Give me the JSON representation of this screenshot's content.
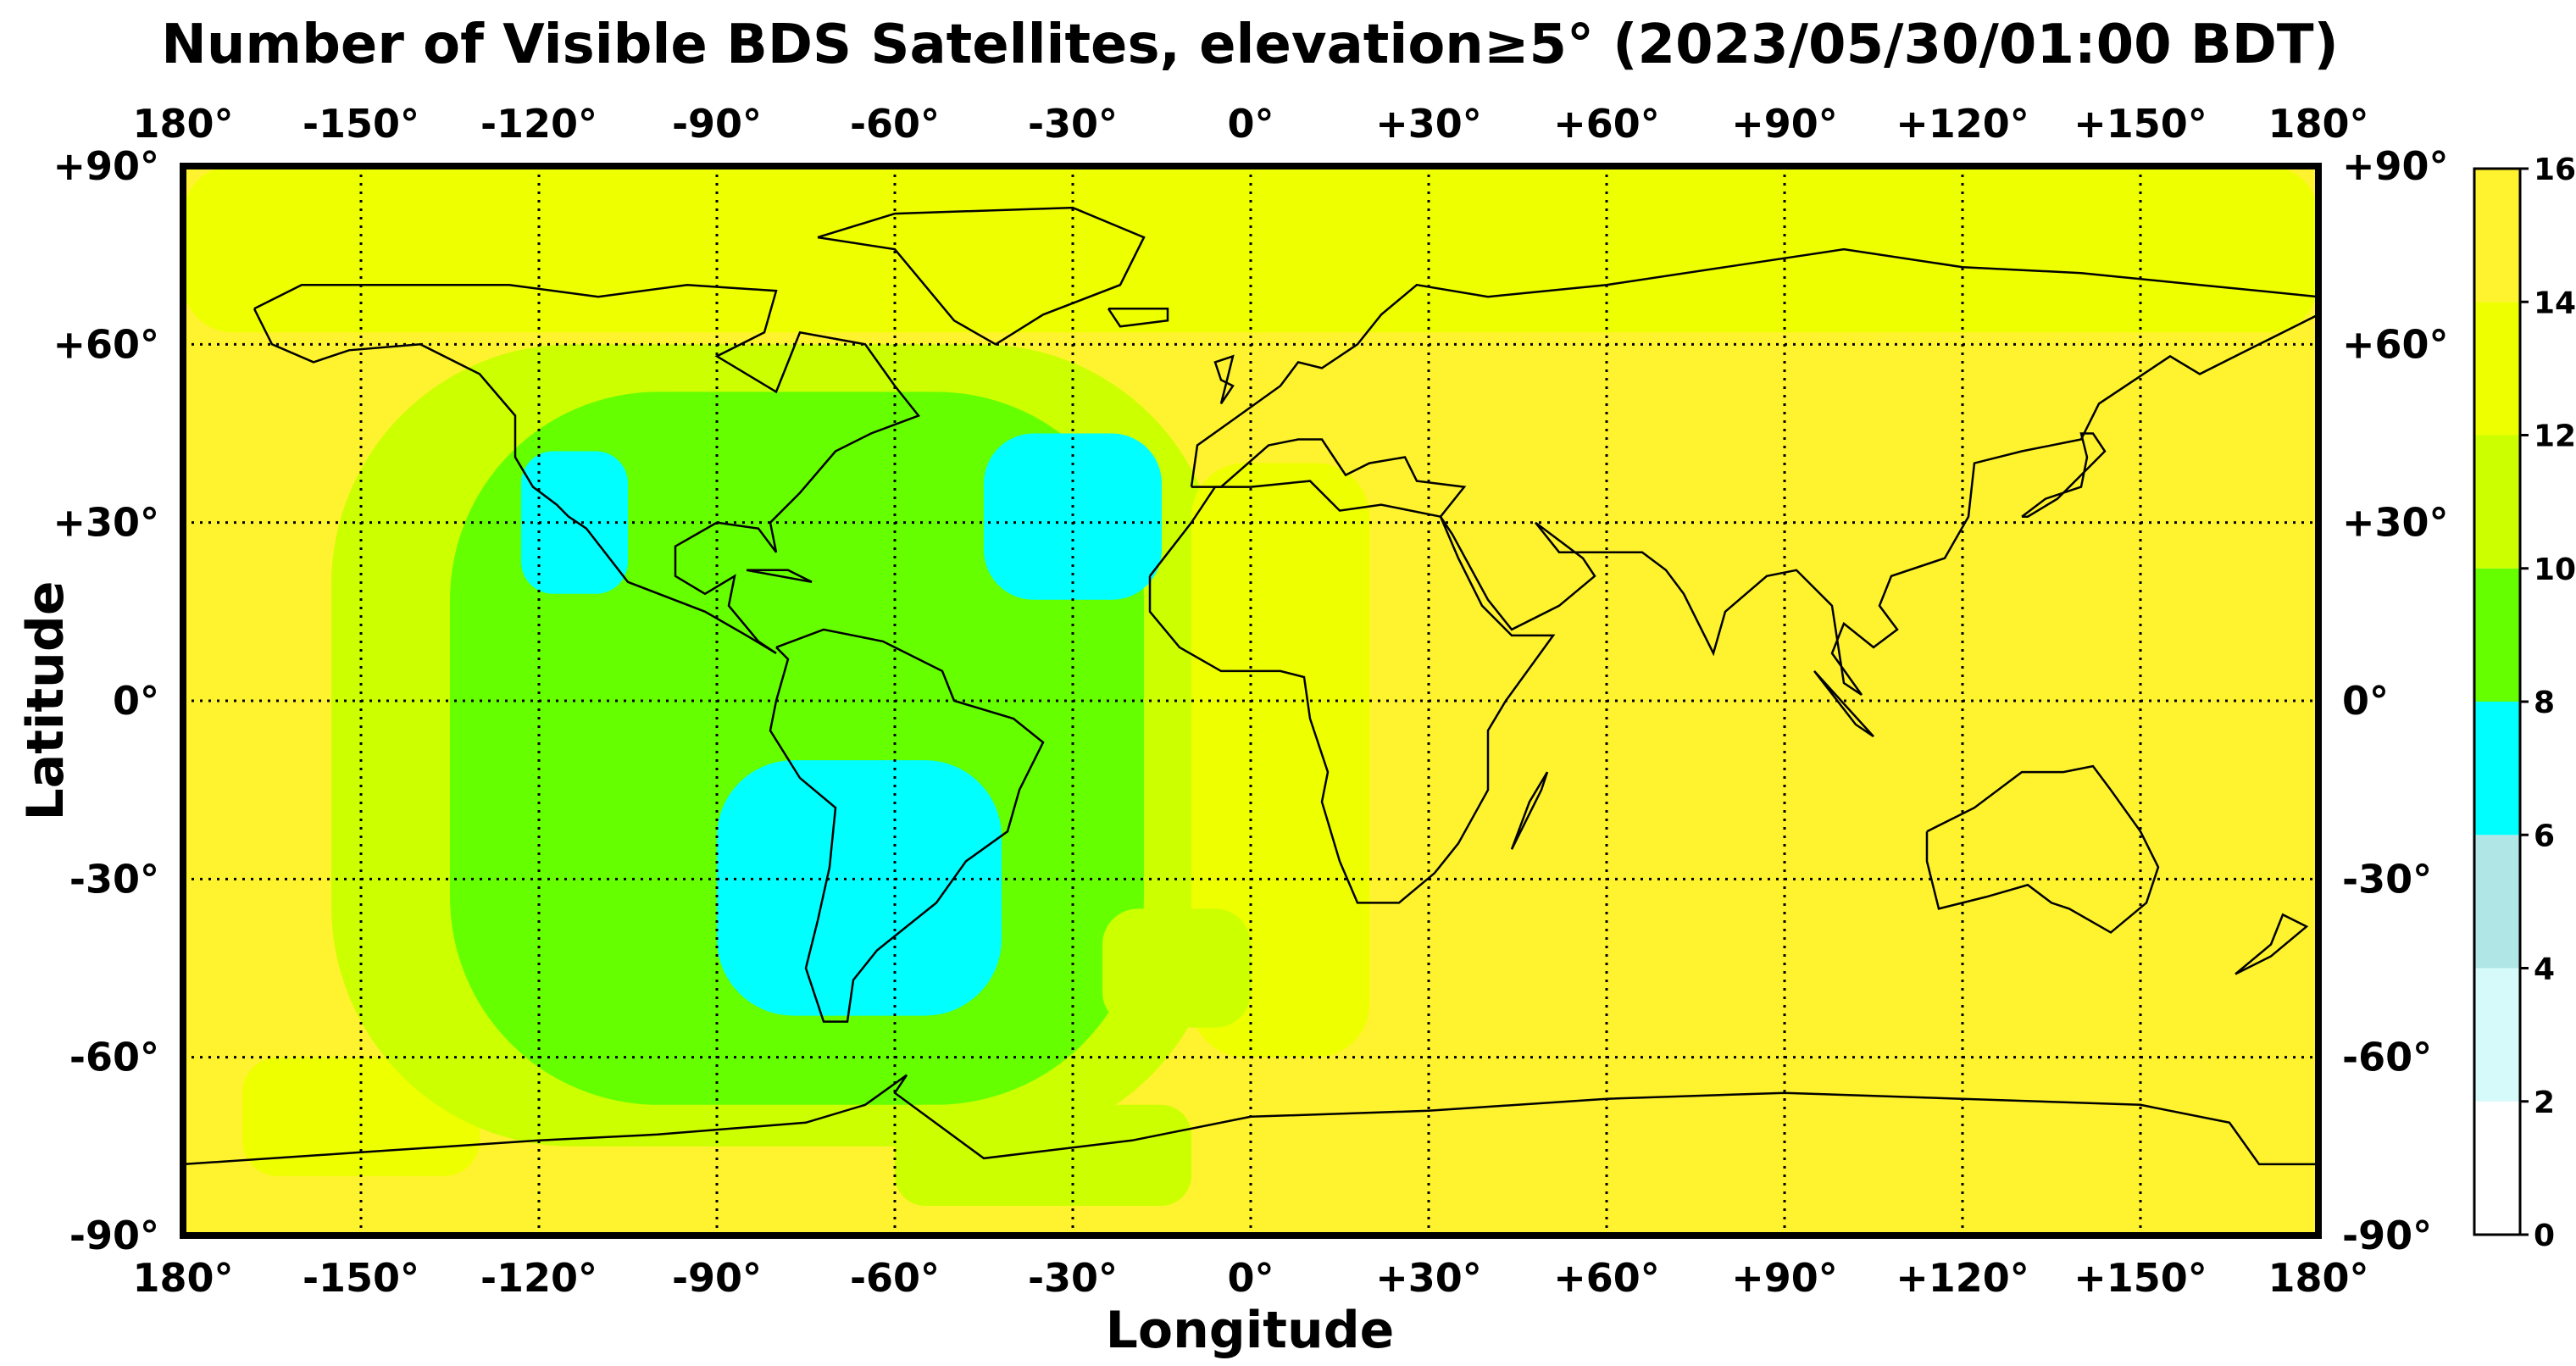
{
  "title": "Number of Visible BDS Satellites, elevation≥5° (2023/05/30/01:00 BDT)",
  "xlabel": "Longitude",
  "ylabel": "Latitude",
  "lon_ticks": [
    "180°",
    "-150°",
    "-120°",
    "-90°",
    "-60°",
    "-30°",
    "0°",
    "+30°",
    "+60°",
    "+90°",
    "+120°",
    "+150°",
    "180°"
  ],
  "lat_ticks": [
    "+90°",
    "+60°",
    "+30°",
    "0°",
    "-30°",
    "-60°",
    "-90°"
  ],
  "colorbar": {
    "ticks": [
      "0",
      "2",
      "4",
      "6",
      "8",
      "10",
      "12",
      "14",
      "16"
    ],
    "bins": [
      {
        "min": 0,
        "max": 2,
        "color": "#ffffff"
      },
      {
        "min": 2,
        "max": 4,
        "color": "#d6fafa"
      },
      {
        "min": 4,
        "max": 6,
        "color": "#b0e6e6"
      },
      {
        "min": 6,
        "max": 8,
        "color": "#00ffff"
      },
      {
        "min": 8,
        "max": 10,
        "color": "#66ff00"
      },
      {
        "min": 10,
        "max": 12,
        "color": "#ccff00"
      },
      {
        "min": 12,
        "max": 14,
        "color": "#eeff00"
      },
      {
        "min": 14,
        "max": 16,
        "color": "#fff22e"
      }
    ]
  },
  "chart_data": {
    "type": "heatmap",
    "projection": "equirectangular",
    "xlim": [
      -180,
      180
    ],
    "ylim": [
      -90,
      90
    ],
    "grid": true,
    "background_value": 15,
    "regions": [
      {
        "value": 13,
        "lon": [
          -180,
          180
        ],
        "lat": [
          62,
          90
        ]
      },
      {
        "value": 13,
        "lon": [
          -170,
          -130
        ],
        "lat": [
          -80,
          -60
        ]
      },
      {
        "value": 11,
        "lon": [
          -155,
          -5
        ],
        "lat": [
          -75,
          60
        ]
      },
      {
        "value": 13,
        "lon": [
          -10,
          20
        ],
        "lat": [
          -60,
          40
        ]
      },
      {
        "value": 9,
        "lon": [
          -135,
          -18
        ],
        "lat": [
          -68,
          52
        ]
      },
      {
        "value": 11,
        "lon": [
          -25,
          0
        ],
        "lat": [
          -55,
          -35
        ]
      },
      {
        "value": 11,
        "lon": [
          -60,
          -10
        ],
        "lat": [
          -85,
          -68
        ]
      },
      {
        "value": 7,
        "lon": [
          -123,
          -105
        ],
        "lat": [
          18,
          42
        ]
      },
      {
        "value": 7,
        "lon": [
          -45,
          -15
        ],
        "lat": [
          17,
          45
        ]
      },
      {
        "value": 7,
        "lon": [
          -90,
          -42
        ],
        "lat": [
          -53,
          -10
        ]
      }
    ]
  }
}
